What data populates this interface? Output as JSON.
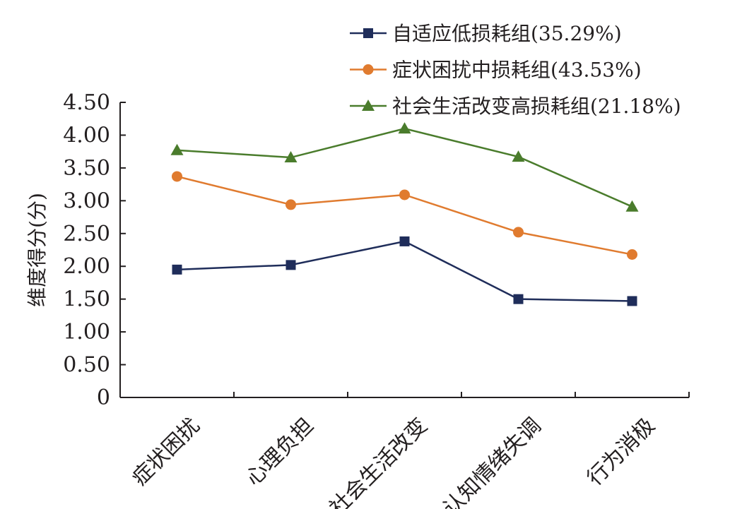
{
  "chart_data": {
    "type": "line",
    "categories": [
      "症状困扰",
      "心理负担",
      "社会生活改变",
      "认知情绪失调",
      "行为消极"
    ],
    "series": [
      {
        "name": "自适应低损耗组(35.29%)",
        "values": [
          1.95,
          2.02,
          2.38,
          1.5,
          1.47
        ],
        "color": "#1f2d5a",
        "marker": "square"
      },
      {
        "name": "症状困扰中损耗组(43.53%)",
        "values": [
          3.37,
          2.94,
          3.09,
          2.52,
          2.18
        ],
        "color": "#e07b2f",
        "marker": "circle"
      },
      {
        "name": "社会生活改变高损耗组(21.18%)",
        "values": [
          3.77,
          3.66,
          4.1,
          3.67,
          2.91
        ],
        "color": "#4a7c2c",
        "marker": "triangle"
      }
    ],
    "ylabel": "维度得分(分)",
    "xlabel": "",
    "ylim": [
      0,
      4.5
    ],
    "yticks": [
      "0",
      "0.50",
      "1.00",
      "1.50",
      "2.00",
      "2.50",
      "3.00",
      "3.50",
      "4.00",
      "4.50"
    ],
    "grid": false,
    "legend_position": "top-right"
  }
}
